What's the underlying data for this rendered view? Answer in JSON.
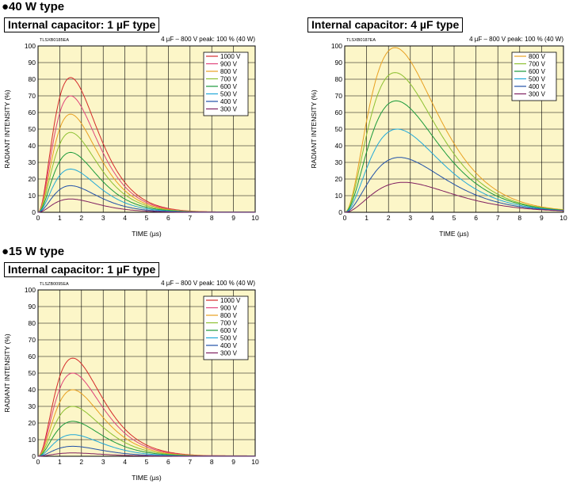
{
  "sections": {
    "top": "●40 W type",
    "bottom": "●15 W type"
  },
  "chart_data": [
    {
      "type": "line",
      "box_label": "Internal capacitor: 1 µF type",
      "code": "TLSXB0185EA",
      "note": "4 µF – 800 V peak: 100 % (40 W)",
      "xlabel": "TIME (µs)",
      "ylabel": "RADIANT INTENSITY (%)",
      "xlim": [
        0,
        10
      ],
      "ylim": [
        0,
        100
      ],
      "xticks": [
        "0",
        "1",
        "2",
        "3",
        "4",
        "5",
        "6",
        "7",
        "8",
        "9",
        "10"
      ],
      "yticks": [
        "0",
        "10",
        "20",
        "30",
        "40",
        "50",
        "60",
        "70",
        "80",
        "90",
        "100"
      ],
      "grid": true,
      "legend_position": "top-right",
      "series": [
        {
          "name": "1000 V",
          "color": "#d42a2a",
          "peak_x": 1.5,
          "peak_y": 81,
          "tail": 0.4
        },
        {
          "name": "900 V",
          "color": "#e0447a",
          "peak_x": 1.5,
          "peak_y": 70,
          "tail": 0.35
        },
        {
          "name": "800 V",
          "color": "#e8a020",
          "peak_x": 1.5,
          "peak_y": 59,
          "tail": 0.3
        },
        {
          "name": "700 V",
          "color": "#8cc030",
          "peak_x": 1.5,
          "peak_y": 48,
          "tail": 0.25
        },
        {
          "name": "600 V",
          "color": "#1a9a3a",
          "peak_x": 1.5,
          "peak_y": 36,
          "tail": 0.2
        },
        {
          "name": "500 V",
          "color": "#20a8d8",
          "peak_x": 1.5,
          "peak_y": 26,
          "tail": 0.15
        },
        {
          "name": "400 V",
          "color": "#2050a8",
          "peak_x": 1.5,
          "peak_y": 16,
          "tail": 0.1
        },
        {
          "name": "300 V",
          "color": "#802060",
          "peak_x": 1.5,
          "peak_y": 8,
          "tail": 0.05
        }
      ]
    },
    {
      "type": "line",
      "box_label": "Internal capacitor: 4 µF type",
      "code": "TLSXB0187EA",
      "note": "4 µF – 800 V peak: 100 % (40 W)",
      "xlabel": "TIME (µs)",
      "ylabel": "RADIANT INTENSITY (%)",
      "xlim": [
        0,
        10
      ],
      "ylim": [
        0,
        100
      ],
      "xticks": [
        "0",
        "1",
        "2",
        "3",
        "4",
        "5",
        "6",
        "7",
        "8",
        "9",
        "10"
      ],
      "yticks": [
        "0",
        "10",
        "20",
        "30",
        "40",
        "50",
        "60",
        "70",
        "80",
        "90",
        "100"
      ],
      "grid": true,
      "legend_position": "top-right",
      "series": [
        {
          "name": "800 V",
          "color": "#e8a020",
          "peak_x": 2.3,
          "peak_y": 99,
          "tail": 2.5
        },
        {
          "name": "700 V",
          "color": "#8cc030",
          "peak_x": 2.3,
          "peak_y": 84,
          "tail": 2.2
        },
        {
          "name": "600 V",
          "color": "#1a9a3a",
          "peak_x": 2.35,
          "peak_y": 67,
          "tail": 1.9
        },
        {
          "name": "500 V",
          "color": "#20a8d8",
          "peak_x": 2.4,
          "peak_y": 50,
          "tail": 1.6
        },
        {
          "name": "400 V",
          "color": "#2050a8",
          "peak_x": 2.5,
          "peak_y": 33,
          "tail": 1.3
        },
        {
          "name": "300 V",
          "color": "#802060",
          "peak_x": 2.7,
          "peak_y": 18,
          "tail": 1.0
        }
      ]
    },
    {
      "type": "line",
      "box_label": "Internal capacitor: 1 µF type",
      "code": "TLSZB0095EA",
      "note": "4 µF – 800 V peak: 100 % (40 W)",
      "xlabel": "TIME (µs)",
      "ylabel": "RADIANT INTENSITY (%)",
      "xlim": [
        0,
        10
      ],
      "ylim": [
        0,
        100
      ],
      "xticks": [
        "0",
        "1",
        "2",
        "3",
        "4",
        "5",
        "6",
        "7",
        "8",
        "9",
        "10"
      ],
      "yticks": [
        "0",
        "10",
        "20",
        "30",
        "40",
        "50",
        "60",
        "70",
        "80",
        "90",
        "100"
      ],
      "grid": true,
      "legend_position": "top-right",
      "series": [
        {
          "name": "1000 V",
          "color": "#d42a2a",
          "peak_x": 1.6,
          "peak_y": 59,
          "tail": 0.5
        },
        {
          "name": "900 V",
          "color": "#e0447a",
          "peak_x": 1.6,
          "peak_y": 50,
          "tail": 0.4
        },
        {
          "name": "800 V",
          "color": "#e8a020",
          "peak_x": 1.6,
          "peak_y": 40,
          "tail": 0.35
        },
        {
          "name": "700 V",
          "color": "#8cc030",
          "peak_x": 1.6,
          "peak_y": 30,
          "tail": 0.3
        },
        {
          "name": "600 V",
          "color": "#1a9a3a",
          "peak_x": 1.6,
          "peak_y": 21,
          "tail": 0.25
        },
        {
          "name": "500 V",
          "color": "#20a8d8",
          "peak_x": 1.6,
          "peak_y": 13,
          "tail": 0.2
        },
        {
          "name": "400 V",
          "color": "#2050a8",
          "peak_x": 1.6,
          "peak_y": 6,
          "tail": 0.1
        },
        {
          "name": "300 V",
          "color": "#802060",
          "peak_x": 1.6,
          "peak_y": 2,
          "tail": 0.05
        }
      ]
    }
  ]
}
